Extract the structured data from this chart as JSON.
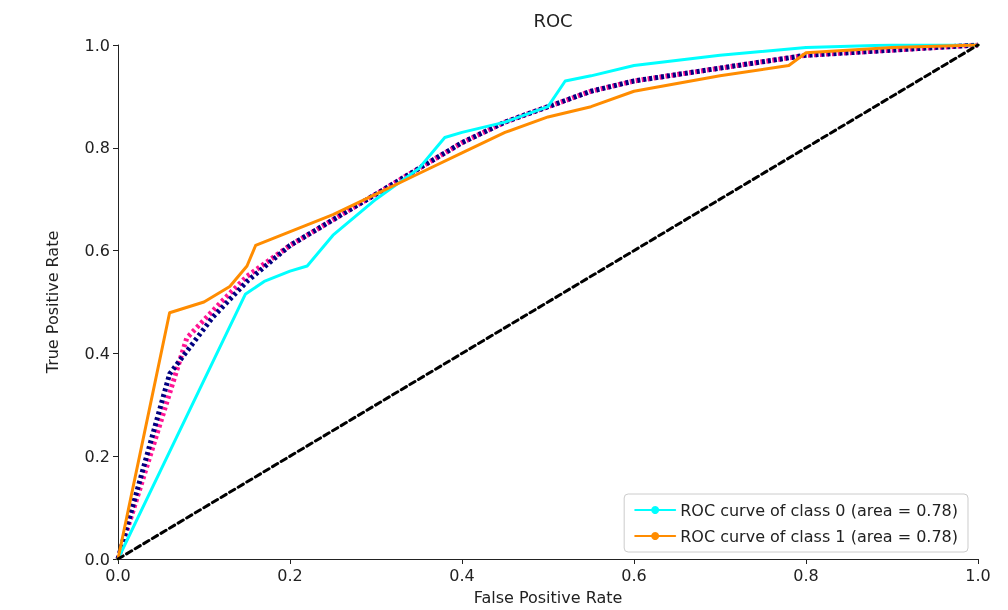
{
  "chart_data": {
    "type": "line",
    "title": "ROC",
    "xlabel": "False Positive Rate",
    "ylabel": "True Positive Rate",
    "xlim": [
      0,
      1
    ],
    "ylim": [
      0,
      1
    ],
    "xticks": [
      {
        "value": 0,
        "label": "0.0"
      },
      {
        "value": 0.2,
        "label": "0.2"
      },
      {
        "value": 0.4,
        "label": "0.4"
      },
      {
        "value": 0.6,
        "label": "0.6"
      },
      {
        "value": 0.8,
        "label": "0.8"
      },
      {
        "value": 1,
        "label": "1.0"
      }
    ],
    "yticks": [
      {
        "value": 0,
        "label": "0.0"
      },
      {
        "value": 0.2,
        "label": "0.2"
      },
      {
        "value": 0.4,
        "label": "0.4"
      },
      {
        "value": 0.6,
        "label": "0.6"
      },
      {
        "value": 0.8,
        "label": "0.8"
      },
      {
        "value": 1,
        "label": "1.0"
      }
    ],
    "grid": false,
    "legend": "bottom right",
    "marker": "none",
    "series": [
      {
        "color": "#ff1493",
        "line_style": "dotted",
        "x": [
          0,
          0.08,
          0.12,
          0.15,
          0.2,
          0.25,
          0.3,
          0.35,
          0.4,
          0.45,
          0.5,
          0.55,
          0.6,
          0.7,
          0.8,
          0.9,
          1
        ],
        "values": [
          0,
          0.43,
          0.5,
          0.55,
          0.61,
          0.66,
          0.71,
          0.76,
          0.81,
          0.85,
          0.88,
          0.91,
          0.93,
          0.955,
          0.98,
          0.99,
          1
        ]
      },
      {
        "color": "#000080",
        "line_style": "dotted",
        "x": [
          0,
          0.06,
          0.11,
          0.15,
          0.2,
          0.25,
          0.3,
          0.35,
          0.4,
          0.45,
          0.5,
          0.55,
          0.6,
          0.7,
          0.8,
          0.9,
          1
        ],
        "values": [
          0,
          0.36,
          0.47,
          0.54,
          0.61,
          0.66,
          0.71,
          0.76,
          0.81,
          0.85,
          0.88,
          0.91,
          0.93,
          0.955,
          0.98,
          0.99,
          1
        ]
      },
      {
        "name": "ROC curve of class 0 (area = 0.78)",
        "color": "#00ffff",
        "line_style": "solid",
        "x": [
          0,
          0.148,
          0.17,
          0.2,
          0.22,
          0.25,
          0.3,
          0.35,
          0.37,
          0.38,
          0.4,
          0.45,
          0.5,
          0.52,
          0.55,
          0.6,
          0.7,
          0.8,
          0.9,
          1
        ],
        "values": [
          0,
          0.515,
          0.54,
          0.56,
          0.57,
          0.63,
          0.7,
          0.76,
          0.8,
          0.82,
          0.83,
          0.85,
          0.88,
          0.93,
          0.94,
          0.96,
          0.98,
          0.995,
          1,
          1
        ]
      },
      {
        "name": "ROC curve of class 1 (area = 0.78)",
        "color": "#ff8c00",
        "line_style": "solid",
        "x": [
          0,
          0.06,
          0.1,
          0.13,
          0.15,
          0.16,
          0.19,
          0.22,
          0.25,
          0.3,
          0.35,
          0.4,
          0.45,
          0.5,
          0.55,
          0.6,
          0.7,
          0.78,
          0.8,
          0.9,
          1
        ],
        "values": [
          0,
          0.479,
          0.5,
          0.53,
          0.57,
          0.61,
          0.63,
          0.65,
          0.67,
          0.71,
          0.75,
          0.79,
          0.83,
          0.86,
          0.88,
          0.91,
          0.94,
          0.96,
          0.985,
          0.995,
          1
        ]
      },
      {
        "color": "#000000",
        "line_style": "dashed",
        "x": [
          0,
          1
        ],
        "values": [
          0,
          1
        ]
      }
    ]
  }
}
